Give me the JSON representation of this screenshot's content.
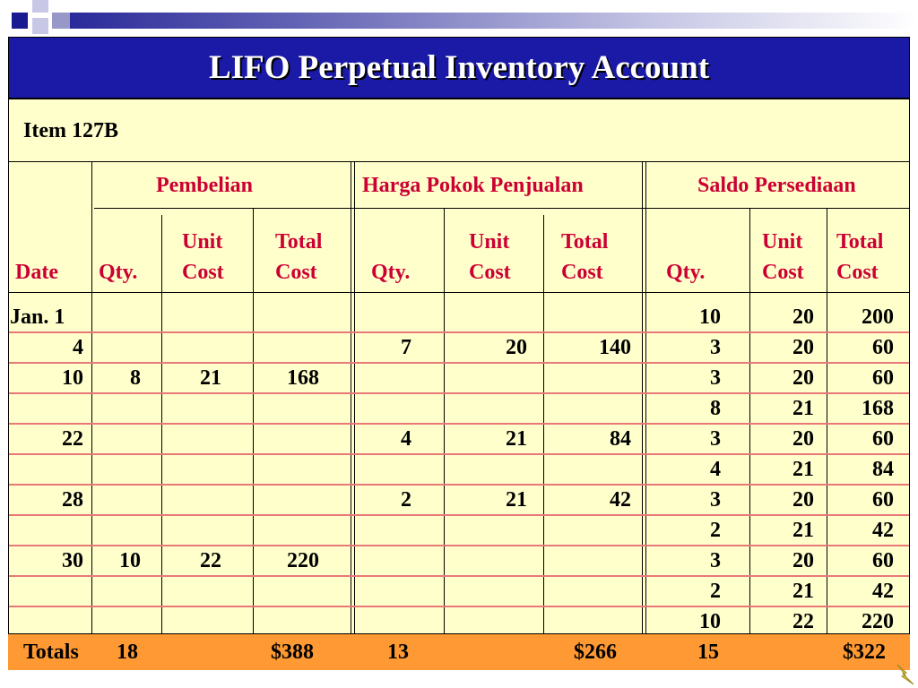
{
  "title": "LIFO Perpetual Inventory Account",
  "item_label": "Item  127B",
  "groups": {
    "purchases": "Pembelian",
    "cogs": "Harga Pokok Penjualan",
    "balance": "Saldo Persediaan"
  },
  "columns": {
    "date": "Date",
    "qty": "Qty.",
    "unit_cost": [
      "Unit",
      "Cost"
    ],
    "total_cost": [
      "Total",
      "Cost"
    ]
  },
  "rows": [
    {
      "date": "Jan.  1",
      "p_qty": "",
      "p_unit": "",
      "p_total": "",
      "s_qty": "",
      "s_unit": "",
      "s_total": "",
      "b_qty": "10",
      "b_unit": "20",
      "b_total": "200"
    },
    {
      "date": "4",
      "p_qty": "",
      "p_unit": "",
      "p_total": "",
      "s_qty": "7",
      "s_unit": "20",
      "s_total": "140",
      "b_qty": "3",
      "b_unit": "20",
      "b_total": "60"
    },
    {
      "date": "10",
      "p_qty": "8",
      "p_unit": "21",
      "p_total": "168",
      "s_qty": "",
      "s_unit": "",
      "s_total": "",
      "b_qty": "3",
      "b_unit": "20",
      "b_total": "60"
    },
    {
      "date": "",
      "p_qty": "",
      "p_unit": "",
      "p_total": "",
      "s_qty": "",
      "s_unit": "",
      "s_total": "",
      "b_qty": "8",
      "b_unit": "21",
      "b_total": "168"
    },
    {
      "date": "22",
      "p_qty": "",
      "p_unit": "",
      "p_total": "",
      "s_qty": "4",
      "s_unit": "21",
      "s_total": "84",
      "b_qty": "3",
      "b_unit": "20",
      "b_total": "60"
    },
    {
      "date": "",
      "p_qty": "",
      "p_unit": "",
      "p_total": "",
      "s_qty": "",
      "s_unit": "",
      "s_total": "",
      "b_qty": "4",
      "b_unit": "21",
      "b_total": "84"
    },
    {
      "date": "28",
      "p_qty": "",
      "p_unit": "",
      "p_total": "",
      "s_qty": "2",
      "s_unit": "21",
      "s_total": "42",
      "b_qty": "3",
      "b_unit": "20",
      "b_total": "60"
    },
    {
      "date": "",
      "p_qty": "",
      "p_unit": "",
      "p_total": "",
      "s_qty": "",
      "s_unit": "",
      "s_total": "",
      "b_qty": "2",
      "b_unit": "21",
      "b_total": "42"
    },
    {
      "date": "30",
      "p_qty": "10",
      "p_unit": "22",
      "p_total": "220",
      "s_qty": "",
      "s_unit": "",
      "s_total": "",
      "b_qty": "3",
      "b_unit": "20",
      "b_total": "60"
    },
    {
      "date": "",
      "p_qty": "",
      "p_unit": "",
      "p_total": "",
      "s_qty": "",
      "s_unit": "",
      "s_total": "",
      "b_qty": "2",
      "b_unit": "21",
      "b_total": "42"
    },
    {
      "date": "",
      "p_qty": "",
      "p_unit": "",
      "p_total": "",
      "s_qty": "",
      "s_unit": "",
      "s_total": "",
      "b_qty": "10",
      "b_unit": "22",
      "b_total": "220"
    }
  ],
  "totals": {
    "label": "Totals",
    "p_qty": "18",
    "p_total": "$388",
    "s_qty": "13",
    "s_total": "$266",
    "b_qty": "15",
    "b_total": "$322"
  },
  "colors": {
    "title_bg": "#1a1aa6",
    "panel_bg": "#ffffcc",
    "header_text": "#cc0033",
    "row_line": "#e87878",
    "totals_bg": "#ff9933"
  },
  "icons": [
    "corner-squares-icon",
    "lightning-bolt-icon"
  ]
}
